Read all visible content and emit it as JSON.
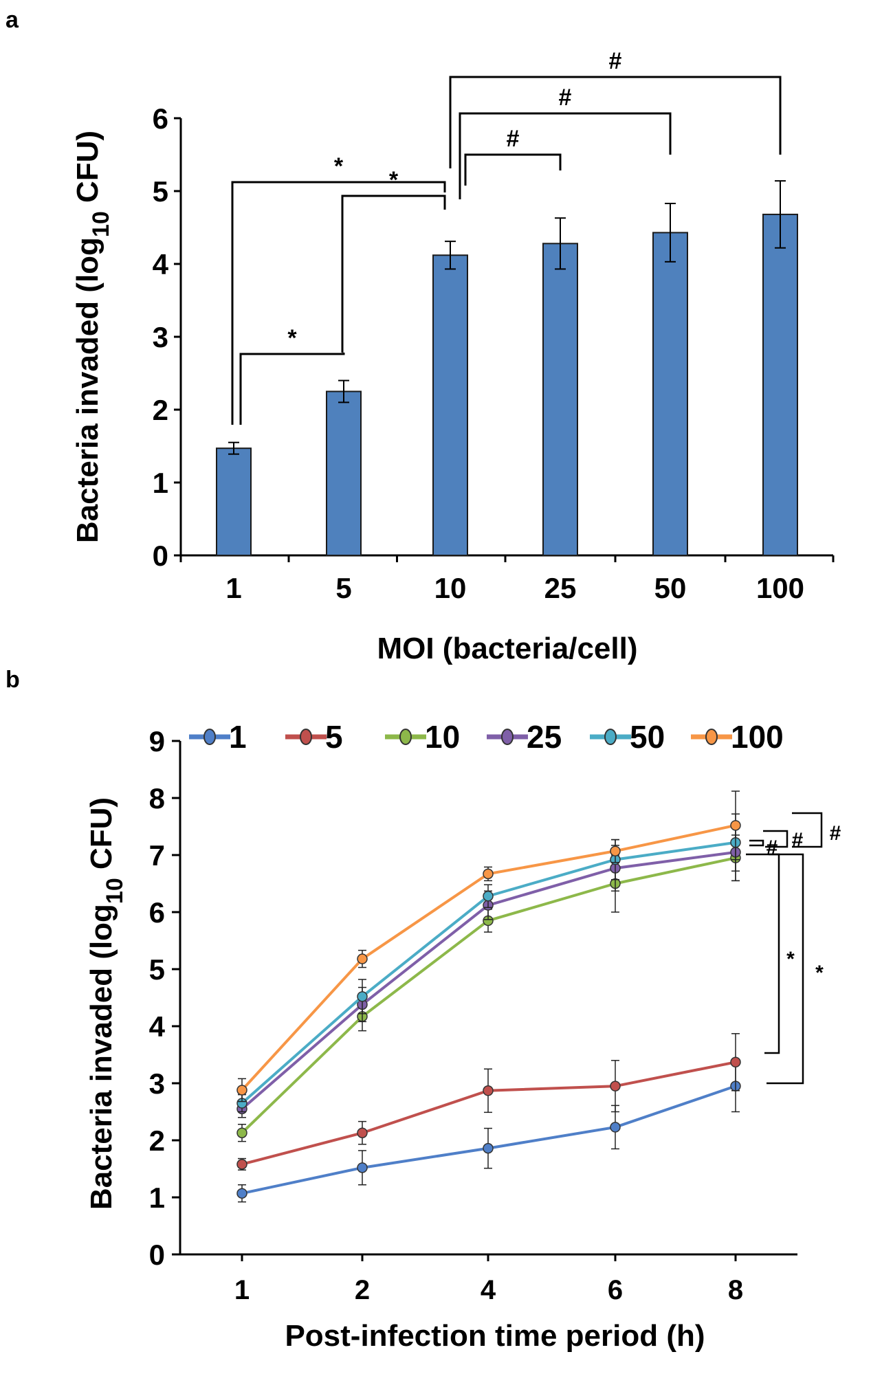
{
  "colors": {
    "bar": "#4f81bd",
    "series": [
      "#4f7fc8",
      "#c0504d",
      "#8db84a",
      "#7f5fa8",
      "#4bacc6",
      "#f79646"
    ]
  },
  "chart_data": [
    {
      "panel": "a",
      "type": "bar",
      "title": "",
      "xlabel": "MOI (bacteria/cell)",
      "ylabel_main": "Bacteria invaded (log",
      "ylabel_sub": "10",
      "ylabel_end": " CFU)",
      "categories": [
        "1",
        "5",
        "10",
        "25",
        "50",
        "100"
      ],
      "values": [
        1.47,
        2.25,
        4.12,
        4.28,
        4.43,
        4.68
      ],
      "errors": [
        0.08,
        0.15,
        0.19,
        0.35,
        0.4,
        0.46
      ],
      "ylim": [
        0,
        6
      ],
      "yticks": [
        "0",
        "1",
        "2",
        "3",
        "4",
        "5",
        "6"
      ],
      "significance": [
        {
          "from": "1",
          "to": "5",
          "symbol": "*"
        },
        {
          "from": "1",
          "to": "10",
          "symbol": "*"
        },
        {
          "from": "5",
          "to": "10",
          "symbol": "*"
        },
        {
          "from": "10",
          "to": "25",
          "symbol": "#"
        },
        {
          "from": "10",
          "to": "50",
          "symbol": "#"
        },
        {
          "from": "10",
          "to": "100",
          "symbol": "#"
        }
      ]
    },
    {
      "panel": "b",
      "type": "line",
      "title": "",
      "xlabel": "Post-infection time period (h)",
      "ylabel_main": "Bacteria invaded (log",
      "ylabel_sub": "10",
      "ylabel_end": " CFU)",
      "x": [
        "1",
        "2",
        "4",
        "6",
        "8"
      ],
      "ylim": [
        0,
        9
      ],
      "yticks": [
        "0",
        "1",
        "2",
        "3",
        "4",
        "5",
        "6",
        "7",
        "8",
        "9"
      ],
      "legend_position": "top",
      "series": [
        {
          "name": "1",
          "values": [
            1.07,
            1.52,
            1.86,
            2.23,
            2.95
          ],
          "errors": [
            0.15,
            0.3,
            0.35,
            0.38,
            0.45
          ]
        },
        {
          "name": "5",
          "values": [
            1.58,
            2.13,
            2.87,
            2.95,
            3.37
          ],
          "errors": [
            0.1,
            0.2,
            0.38,
            0.45,
            0.5
          ]
        },
        {
          "name": "10",
          "values": [
            2.13,
            4.17,
            5.85,
            6.5,
            6.95
          ],
          "errors": [
            0.15,
            0.25,
            0.2,
            0.5,
            0.4
          ]
        },
        {
          "name": "25",
          "values": [
            2.55,
            4.38,
            6.12,
            6.77,
            7.05
          ],
          "errors": [
            0.15,
            0.3,
            0.25,
            0.4,
            0.5
          ]
        },
        {
          "name": "50",
          "values": [
            2.65,
            4.52,
            6.28,
            6.92,
            7.22
          ],
          "errors": [
            0.15,
            0.3,
            0.2,
            0.35,
            0.5
          ]
        },
        {
          "name": "100",
          "values": [
            2.88,
            5.18,
            6.67,
            7.07,
            7.52
          ],
          "errors": [
            0.2,
            0.15,
            0.12,
            0.2,
            0.6
          ]
        }
      ],
      "significance": [
        {
          "symbol": "#"
        },
        {
          "symbol": "#"
        },
        {
          "symbol": "#"
        },
        {
          "symbol": "*"
        },
        {
          "symbol": "*"
        }
      ]
    }
  ],
  "labels": {
    "panel_a": "a",
    "panel_b": "b"
  }
}
